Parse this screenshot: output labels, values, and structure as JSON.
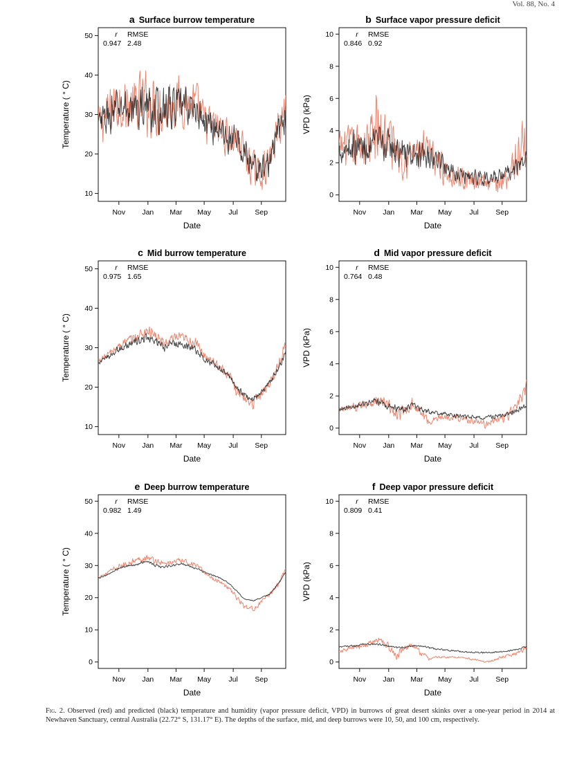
{
  "journal_header": "Vol. 88, No. 4",
  "caption": {
    "label": "Fig. 2.",
    "text": "Observed (red) and predicted (black) temperature and humidity (vapor pressure deficit, VPD) in burrows of great desert skinks over a one-year period in 2014 at Newhaven Sanctuary, central Australia (22.72° S, 131.17° E). The depths of the surface, mid, and deep burrows were 10, 50, and 100 cm, respectively."
  },
  "colors": {
    "observed": "#E8826A",
    "observed_dark": "#D8654C",
    "predicted": "#111111",
    "overlap": "#6E2A1E"
  },
  "chart_data": [
    {
      "type": "line",
      "panel": "a",
      "title": "Surface burrow temperature",
      "xlabel": "Date",
      "ylabel": "Temperature ( ° C)",
      "xticks": [
        "Nov",
        "Jan",
        "Mar",
        "May",
        "Jul",
        "Sep"
      ],
      "ylim": [
        8,
        52
      ],
      "yticks": [
        10,
        20,
        30,
        40,
        50
      ],
      "stats_header": [
        "r",
        "RMSE"
      ],
      "stats": [
        "0.947",
        "2.48"
      ],
      "series": [
        {
          "name": "Observed",
          "values": [
            27,
            30,
            32,
            33,
            31,
            33,
            33,
            32,
            31,
            33,
            33,
            33,
            32,
            28,
            27,
            26,
            24,
            24,
            20,
            16,
            15,
            18,
            26,
            32
          ],
          "noise": [
            8,
            9,
            10,
            10,
            10,
            11,
            12,
            11,
            10,
            10,
            9,
            9,
            9,
            8,
            7,
            7,
            7,
            7,
            7,
            7,
            6,
            6,
            7,
            8
          ]
        },
        {
          "name": "Predicted",
          "values": [
            27,
            29,
            31,
            32,
            31,
            32,
            32,
            31,
            31,
            32,
            32,
            32,
            31,
            28,
            27,
            26,
            24,
            23,
            20,
            17,
            16,
            18,
            25,
            30
          ],
          "noise": [
            6,
            7,
            8,
            8,
            8,
            8,
            8,
            8,
            8,
            8,
            7,
            7,
            7,
            6,
            6,
            6,
            6,
            6,
            6,
            5,
            5,
            5,
            6,
            6
          ]
        }
      ]
    },
    {
      "type": "line",
      "panel": "b",
      "title": "Surface vapor pressure deficit",
      "xlabel": "Date",
      "ylabel": "VPD (kPa)",
      "xticks": [
        "Nov",
        "Jan",
        "Mar",
        "May",
        "Jul",
        "Sep"
      ],
      "ylim": [
        -0.4,
        10.4
      ],
      "yticks": [
        0,
        2,
        4,
        6,
        8,
        10
      ],
      "stats_header": [
        "r",
        "RMSE"
      ],
      "stats": [
        "0.846",
        "0.92"
      ],
      "series": [
        {
          "name": "Observed",
          "values": [
            3,
            3,
            3,
            3.2,
            3.5,
            4,
            3.5,
            3,
            2.5,
            2.5,
            2.6,
            2.5,
            2.2,
            1.5,
            1.2,
            1,
            1,
            0.9,
            0.7,
            0.6,
            0.9,
            1.5,
            2.5,
            3.5
          ],
          "noise": [
            1.5,
            1.8,
            2,
            2.2,
            3,
            4,
            3.5,
            2.5,
            2,
            2,
            2,
            1.8,
            1.6,
            1.3,
            1.1,
            1,
            1,
            0.9,
            0.8,
            0.8,
            1,
            1.5,
            2,
            2.5
          ]
        },
        {
          "name": "Predicted",
          "values": [
            2.8,
            3,
            3,
            3,
            3,
            3.2,
            3,
            2.8,
            2.6,
            2.5,
            2.4,
            2.3,
            2.2,
            1.8,
            1.5,
            1.3,
            1.2,
            1.1,
            1.1,
            1,
            1.1,
            1.4,
            1.8,
            2.2
          ],
          "noise": [
            1.2,
            1.4,
            1.5,
            1.5,
            1.5,
            1.6,
            1.5,
            1.4,
            1.3,
            1.2,
            1.2,
            1.2,
            1.1,
            1,
            0.9,
            0.8,
            0.8,
            0.8,
            0.7,
            0.7,
            0.7,
            0.8,
            0.9,
            1
          ]
        }
      ]
    },
    {
      "type": "line",
      "panel": "c",
      "title": "Mid burrow temperature",
      "xlabel": "Date",
      "ylabel": "Temperature ( ° C)",
      "xticks": [
        "Nov",
        "Jan",
        "Mar",
        "May",
        "Jul",
        "Sep"
      ],
      "ylim": [
        8,
        52
      ],
      "yticks": [
        10,
        20,
        30,
        40,
        50
      ],
      "stats_header": [
        "r",
        "RMSE"
      ],
      "stats": [
        "0.975",
        "1.65"
      ],
      "series": [
        {
          "name": "Observed",
          "values": [
            26.5,
            28,
            29.5,
            31,
            32,
            33,
            34.5,
            33,
            31,
            32,
            32.5,
            32,
            31,
            28,
            27,
            25,
            23,
            19,
            17,
            16,
            18.5,
            21,
            25,
            31
          ],
          "noise": [
            1.2,
            1.5,
            1.8,
            2,
            2,
            2.5,
            2.5,
            2.5,
            2,
            2,
            2,
            2,
            2,
            1.8,
            1.8,
            1.6,
            1.8,
            1.8,
            1.8,
            2,
            2,
            1.8,
            1.8,
            2
          ]
        },
        {
          "name": "Predicted",
          "values": [
            26,
            27.5,
            29,
            30,
            31,
            31.5,
            32.5,
            31.5,
            30,
            31,
            31,
            30.5,
            29.5,
            27,
            26,
            24.5,
            23,
            20,
            18,
            17,
            18.5,
            21,
            24.5,
            28.5
          ],
          "noise": [
            0.8,
            1,
            1.2,
            1.4,
            1.5,
            1.8,
            1.8,
            1.8,
            1.5,
            1.5,
            1.5,
            1.5,
            1.5,
            1.2,
            1.2,
            1.1,
            1.2,
            1.2,
            1.2,
            1.2,
            1.2,
            1.2,
            1.2,
            1.2
          ]
        }
      ]
    },
    {
      "type": "line",
      "panel": "d",
      "title": "Mid vapor pressure deficit",
      "xlabel": "Date",
      "ylabel": "VPD (kPa)",
      "xticks": [
        "Nov",
        "Jan",
        "Mar",
        "May",
        "Jul",
        "Sep"
      ],
      "ylim": [
        -0.4,
        10.4
      ],
      "yticks": [
        0,
        2,
        4,
        6,
        8,
        10
      ],
      "stats_header": [
        "r",
        "RMSE"
      ],
      "stats": [
        "0.764",
        "0.48"
      ],
      "series": [
        {
          "name": "Observed",
          "values": [
            1.1,
            1.2,
            1.3,
            1.5,
            1.6,
            1.7,
            1.4,
            0.8,
            1,
            1.5,
            1,
            0.4,
            0.6,
            0.7,
            0.7,
            0.6,
            0.5,
            0.4,
            0.2,
            0.5,
            0.6,
            0.9,
            1.5,
            2.5
          ],
          "noise": [
            0.3,
            0.3,
            0.4,
            0.4,
            0.5,
            0.5,
            0.6,
            0.7,
            0.6,
            0.5,
            0.5,
            0.4,
            0.3,
            0.3,
            0.3,
            0.3,
            0.3,
            0.3,
            0.3,
            0.3,
            0.4,
            0.5,
            0.6,
            0.8
          ]
        },
        {
          "name": "Predicted",
          "values": [
            1.2,
            1.3,
            1.4,
            1.5,
            1.6,
            1.6,
            1.4,
            1.2,
            1.2,
            1.4,
            1.2,
            1,
            0.9,
            0.85,
            0.8,
            0.75,
            0.7,
            0.65,
            0.65,
            0.7,
            0.8,
            0.9,
            1.1,
            1.4
          ],
          "noise": [
            0.2,
            0.2,
            0.25,
            0.25,
            0.3,
            0.3,
            0.35,
            0.35,
            0.3,
            0.3,
            0.25,
            0.25,
            0.2,
            0.2,
            0.2,
            0.2,
            0.2,
            0.2,
            0.2,
            0.2,
            0.2,
            0.25,
            0.25,
            0.3
          ]
        }
      ]
    },
    {
      "type": "line",
      "panel": "e",
      "title": "Deep burrow temperature",
      "xlabel": "Date",
      "ylabel": "Temperature ( ° C)",
      "xticks": [
        "Nov",
        "Jan",
        "Mar",
        "May",
        "Jul",
        "Sep"
      ],
      "ylim": [
        -2,
        52
      ],
      "yticks": [
        0,
        10,
        20,
        30,
        40,
        50
      ],
      "stats_header": [
        "r",
        "RMSE"
      ],
      "stats": [
        "0.982",
        "1.49"
      ],
      "series": [
        {
          "name": "Observed",
          "values": [
            26.5,
            27.5,
            29,
            30,
            31,
            32,
            32.5,
            31.5,
            30.5,
            31,
            31.5,
            31,
            30,
            28,
            26,
            25,
            23,
            20,
            17,
            16.5,
            18.5,
            21,
            24,
            29
          ],
          "noise": [
            0.8,
            1,
            1,
            1.2,
            1.2,
            1.5,
            1.5,
            1.5,
            1.2,
            1.2,
            1.2,
            1.2,
            1.2,
            1,
            1,
            1,
            1.2,
            1.2,
            1.2,
            1.2,
            1.2,
            1.2,
            1.2,
            1.2
          ]
        },
        {
          "name": "Predicted",
          "values": [
            26,
            27,
            28.5,
            29.5,
            30,
            30.5,
            31.5,
            30,
            29.5,
            30,
            30.5,
            30,
            29,
            28,
            27,
            26,
            24.5,
            22,
            19.5,
            19,
            20,
            21,
            24,
            28
          ],
          "noise": [
            0.3,
            0.3,
            0.4,
            0.4,
            0.5,
            0.5,
            0.6,
            0.6,
            0.5,
            0.5,
            0.5,
            0.5,
            0.4,
            0.4,
            0.4,
            0.3,
            0.3,
            0.3,
            0.3,
            0.3,
            0.3,
            0.3,
            0.3,
            0.3
          ]
        }
      ]
    },
    {
      "type": "line",
      "panel": "f",
      "title": "Deep vapor pressure deficit",
      "xlabel": "Date",
      "ylabel": "VPD (kPa)",
      "xticks": [
        "Nov",
        "Jan",
        "Mar",
        "May",
        "Jul",
        "Sep"
      ],
      "ylim": [
        -0.4,
        10.4
      ],
      "yticks": [
        0,
        2,
        4,
        6,
        8,
        10
      ],
      "stats_header": [
        "r",
        "RMSE"
      ],
      "stats": [
        "0.809",
        "0.41"
      ],
      "series": [
        {
          "name": "Observed",
          "values": [
            0.6,
            0.8,
            0.9,
            1,
            1.2,
            1.4,
            1,
            0.3,
            0.9,
            1,
            0.6,
            0.2,
            0.3,
            0.3,
            0.3,
            0.3,
            0.2,
            0.1,
            0,
            0.1,
            0.3,
            0.4,
            0.6,
            0.9
          ],
          "noise": [
            0.15,
            0.2,
            0.2,
            0.25,
            0.3,
            0.3,
            0.35,
            0.35,
            0.3,
            0.25,
            0.25,
            0.15,
            0.1,
            0.1,
            0.1,
            0.1,
            0.1,
            0.1,
            0.1,
            0.1,
            0.15,
            0.15,
            0.2,
            0.2
          ]
        },
        {
          "name": "Predicted",
          "values": [
            0.9,
            1,
            1,
            1.1,
            1.1,
            1.1,
            1,
            0.9,
            0.9,
            1,
            1,
            0.9,
            0.8,
            0.75,
            0.7,
            0.65,
            0.6,
            0.6,
            0.6,
            0.6,
            0.65,
            0.7,
            0.8,
            0.95
          ],
          "noise": [
            0.07,
            0.07,
            0.08,
            0.08,
            0.09,
            0.09,
            0.09,
            0.09,
            0.09,
            0.08,
            0.08,
            0.08,
            0.07,
            0.07,
            0.07,
            0.07,
            0.07,
            0.07,
            0.07,
            0.07,
            0.07,
            0.07,
            0.08,
            0.08
          ]
        }
      ]
    }
  ]
}
